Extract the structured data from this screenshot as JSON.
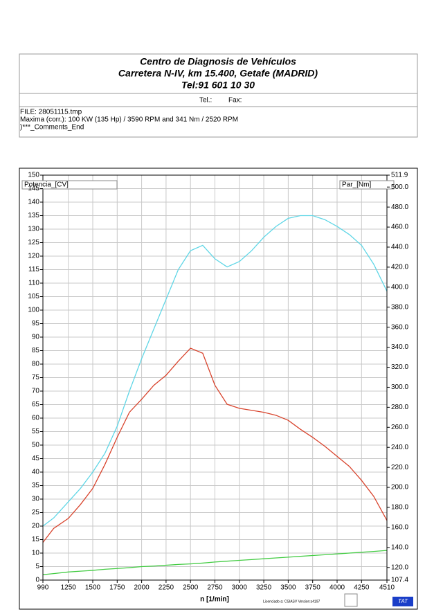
{
  "header": {
    "title_lines": [
      "Centro de Diagnosis de Vehículos",
      "Carretera N-IV, km 15.400, Getafe (MADRID)",
      "Tel:91 601 10 30"
    ],
    "tel": "Tel.:",
    "fax": "Fax:",
    "info_lines": [
      "FILE: 28051115.tmp",
      "Maxima (corr.):  100 KW (135 Hp) /  3590 RPM  and   341 Nm /  2520 RPM",
      ")***_Comments_End"
    ]
  },
  "chart_data": {
    "type": "line",
    "y_label": "Potencia_[CV]",
    "y2_label": "Par_[Nm]",
    "x_label": "n  [1/min]",
    "footer": "Licenciado a: CSIASV   Version:s4197",
    "badge": "TAT",
    "x": [
      990,
      1100,
      1250,
      1375,
      1500,
      1625,
      1750,
      1875,
      2000,
      2125,
      2250,
      2375,
      2500,
      2625,
      2750,
      2875,
      3000,
      3125,
      3250,
      3375,
      3500,
      3625,
      3750,
      3875,
      4000,
      4125,
      4250,
      4375,
      4510
    ],
    "series": [
      {
        "color": "#5fd6e6",
        "values": [
          20,
          23,
          29,
          34,
          40,
          47,
          57,
          70,
          82,
          93,
          104,
          115,
          122,
          124,
          119,
          116,
          118,
          122,
          127,
          131,
          134,
          135,
          135,
          133.5,
          131,
          128,
          124,
          117,
          107
        ]
      },
      {
        "color": "#d8432c",
        "axis": "y2",
        "values": [
          145,
          159,
          169,
          183,
          199,
          223,
          250,
          275,
          288,
          302,
          312,
          326,
          339,
          334,
          302,
          283,
          279,
          277,
          275,
          272,
          267,
          258,
          250,
          241,
          231,
          221,
          207,
          191,
          167
        ]
      },
      {
        "color": "#44cc44",
        "values": [
          2,
          2.4,
          3,
          3.3,
          3.6,
          4,
          4.3,
          4.6,
          5,
          5.2,
          5.5,
          5.8,
          6,
          6.3,
          6.7,
          7,
          7.3,
          7.6,
          7.9,
          8.2,
          8.5,
          8.8,
          9.1,
          9.4,
          9.7,
          10,
          10.3,
          10.6,
          11
        ]
      }
    ],
    "xlim": [
      990,
      4510
    ],
    "xticks": [
      990,
      1250,
      1500,
      1750,
      2000,
      2250,
      2500,
      2750,
      3000,
      3250,
      3500,
      3750,
      4000,
      4250,
      4510
    ],
    "ylim": [
      0,
      150
    ],
    "yticks": [
      0,
      5,
      10,
      15,
      20,
      25,
      30,
      35,
      40,
      45,
      50,
      55,
      60,
      65,
      70,
      75,
      80,
      85,
      90,
      95,
      100,
      105,
      110,
      115,
      120,
      125,
      130,
      135,
      140,
      145,
      150
    ],
    "y2lim": [
      107.4,
      511.9
    ],
    "y2ticks": [
      107.4,
      {
        "value": 120,
        "label": "120.0"
      },
      {
        "value": 140,
        "label": "140.0"
      },
      {
        "value": 160,
        "label": "160.0"
      },
      {
        "value": 180,
        "label": "180.0"
      },
      {
        "value": 200,
        "label": "200.0"
      },
      {
        "value": 220,
        "label": "220.0"
      },
      {
        "value": 240,
        "label": "240.0"
      },
      {
        "value": 260,
        "label": "260.0"
      },
      {
        "value": 280,
        "label": "280.0"
      },
      {
        "value": 300,
        "label": "300.0"
      },
      {
        "value": 320,
        "label": "320.0"
      },
      {
        "value": 340,
        "label": "340.0"
      },
      {
        "value": 360,
        "label": "360.0"
      },
      {
        "value": 380,
        "label": "380.0"
      },
      {
        "value": 400,
        "label": "400.0"
      },
      {
        "value": 420,
        "label": "420.0"
      },
      {
        "value": 440,
        "label": "440.0"
      },
      {
        "value": 460,
        "label": "460.0"
      },
      {
        "value": 480,
        "label": "480.0"
      },
      {
        "value": 500,
        "label": "500.0"
      },
      511.9
    ],
    "grid": true
  }
}
